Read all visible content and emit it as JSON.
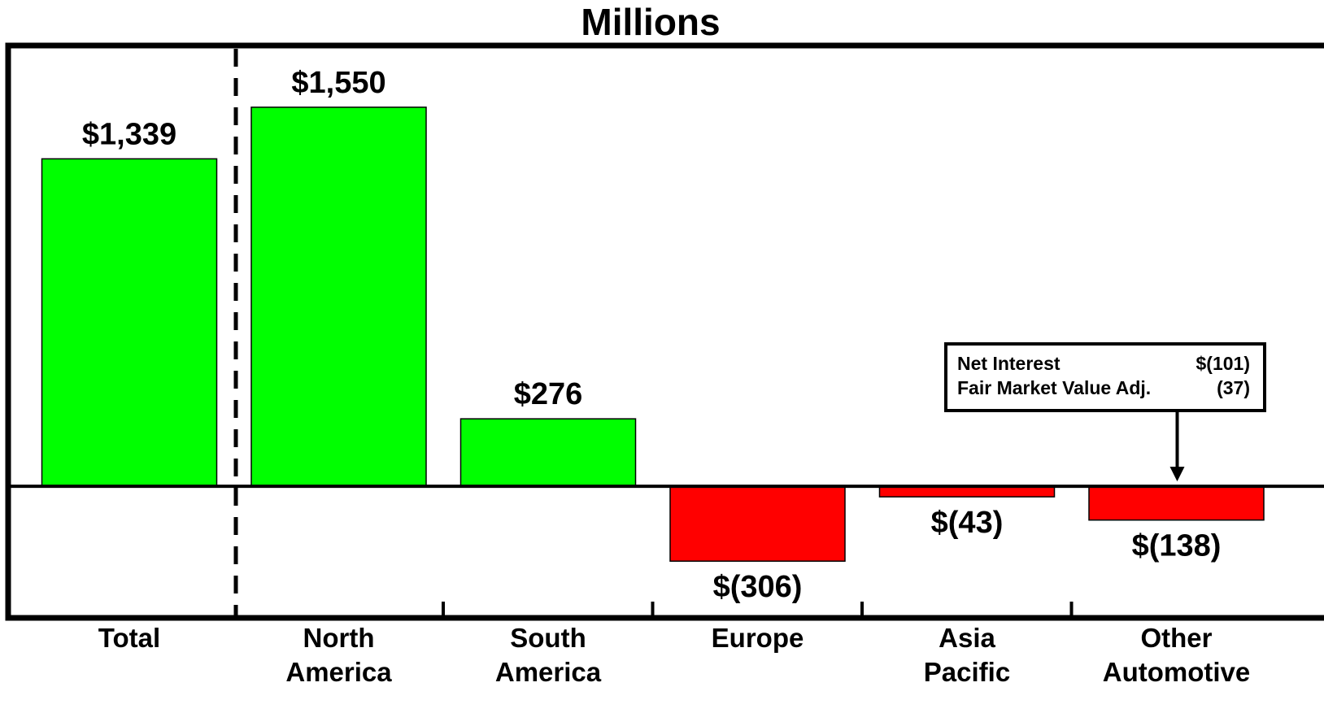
{
  "chart_data": {
    "type": "bar",
    "title": "Millions",
    "categories": [
      [
        "Total"
      ],
      [
        "North",
        "America"
      ],
      [
        "South",
        "America"
      ],
      [
        "Europe"
      ],
      [
        "Asia",
        "Pacific"
      ],
      [
        "Other",
        "Automotive"
      ]
    ],
    "values": [
      1339,
      1550,
      276,
      -306,
      -43,
      -138
    ],
    "value_labels": [
      "$1,339",
      "$1,550",
      "$276",
      "$(306)",
      "$(43)",
      "$(138)"
    ],
    "ylim": [
      -528,
      1789
    ],
    "grid": false,
    "colors": {
      "positive": "#00ff00",
      "negative": "#ff0000",
      "axis": "#000000"
    },
    "annotation": {
      "category_index": 5,
      "rows": [
        {
          "label": "Net Interest",
          "value": "$(101)"
        },
        {
          "label": "Fair Market Value Adj.",
          "value": "(37)"
        }
      ]
    }
  }
}
